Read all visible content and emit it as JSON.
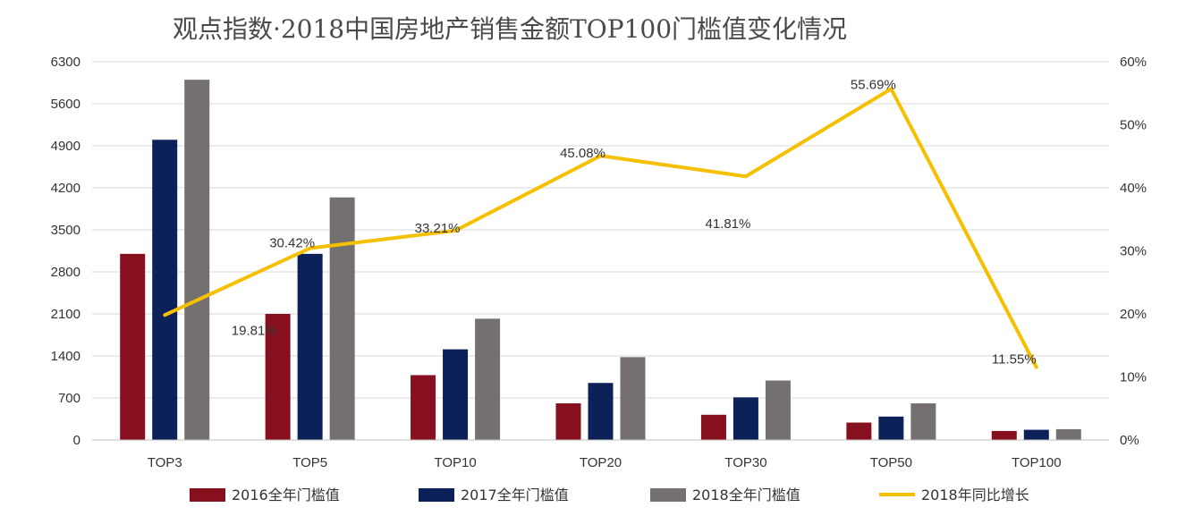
{
  "chart_data": {
    "type": "bar",
    "title": "观点指数·2018中国房地产销售金额TOP100门槛值变化情况",
    "categories": [
      "TOP3",
      "TOP5",
      "TOP10",
      "TOP20",
      "TOP30",
      "TOP50",
      "TOP100"
    ],
    "series": [
      {
        "name": "2016全年门槛值",
        "kind": "bar",
        "axis": "left",
        "color": "#86101e",
        "values": [
          3100,
          2100,
          1080,
          610,
          420,
          290,
          150
        ]
      },
      {
        "name": "2017全年门槛值",
        "kind": "bar",
        "axis": "left",
        "color": "#0c2157",
        "values": [
          5000,
          3100,
          1510,
          950,
          710,
          390,
          170
        ]
      },
      {
        "name": "2018全年门槛值",
        "kind": "bar",
        "axis": "left",
        "color": "#747070",
        "values": [
          6000,
          4040,
          2020,
          1380,
          990,
          610,
          180
        ]
      },
      {
        "name": "2018年同比增长",
        "kind": "line",
        "axis": "right",
        "color": "#f5c000",
        "values": [
          19.81,
          30.42,
          33.21,
          45.08,
          41.81,
          55.69,
          11.55
        ],
        "labels": [
          "19.81%",
          "30.42%",
          "33.21%",
          "45.08%",
          "41.81%",
          "55.69%",
          "11.55%"
        ]
      }
    ],
    "y_left": {
      "min": 0,
      "max": 6300,
      "ticks": [
        "0",
        "700",
        "1400",
        "2100",
        "2800",
        "3500",
        "4200",
        "4900",
        "5600",
        "6300"
      ]
    },
    "y_right": {
      "min": 0,
      "max": 60,
      "ticks": [
        "0%",
        "10%",
        "20%",
        "30%",
        "40%",
        "50%",
        "60%"
      ]
    },
    "grid": true,
    "legend_position": "bottom"
  }
}
